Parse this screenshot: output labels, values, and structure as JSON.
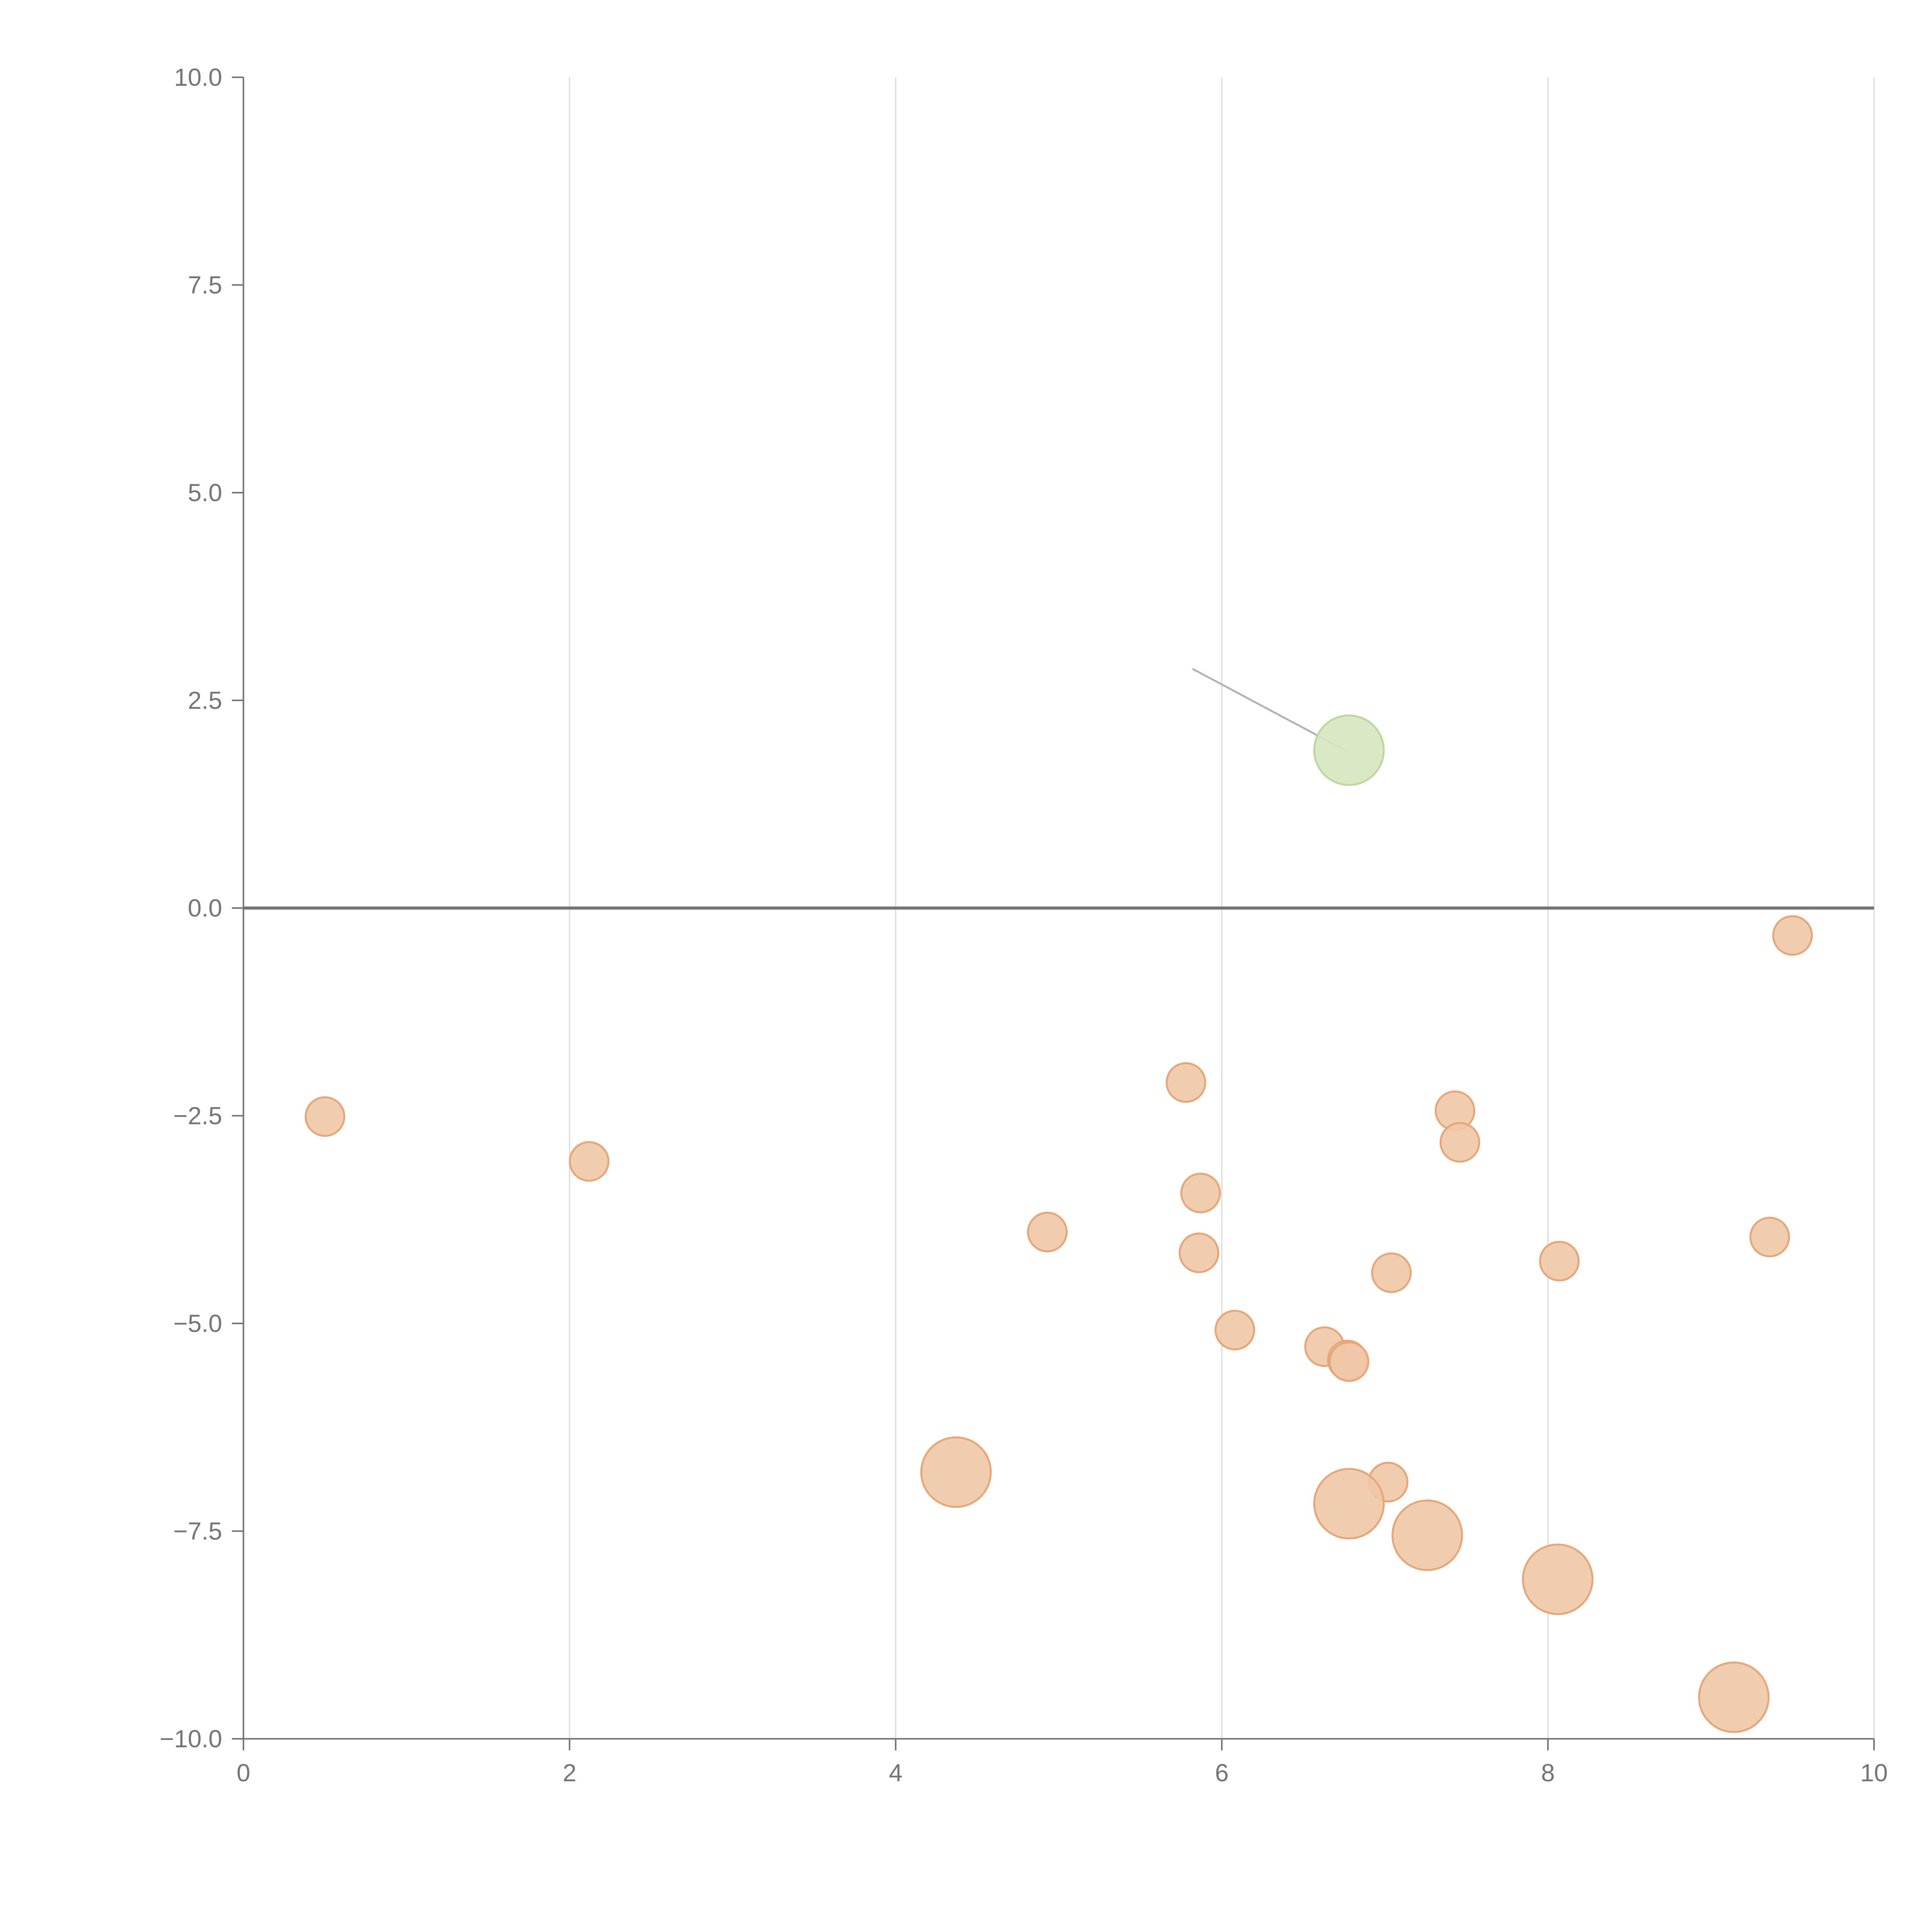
{
  "chart_data": {
    "type": "scatter",
    "title": "",
    "xlabel": "",
    "ylabel": "",
    "xlim": [
      0,
      10
    ],
    "ylim": [
      -10,
      10
    ],
    "x_ticks": [
      0,
      2,
      4,
      6,
      8,
      10
    ],
    "y_ticks": [
      -10,
      -7.5,
      -5,
      -2.5,
      0,
      2.5,
      5,
      7.5,
      10
    ],
    "x_tick_labels": [
      "0",
      "2",
      "4",
      "6",
      "8",
      "10"
    ],
    "y_tick_labels": [
      "−10.0",
      "−7.5",
      "−5.0",
      "−2.5",
      "0.0",
      "2.5",
      "5.0",
      "7.5",
      "10.0"
    ],
    "grid": {
      "vertical": true,
      "horizontal": false
    },
    "zero_line": true,
    "colors": {
      "negative_fill": "#f0c8a6",
      "negative_stroke": "#e6a678",
      "positive_fill": "#d6e5bf",
      "positive_stroke": "#bcd89e",
      "highlight_fill": "#e8a874"
    },
    "series": [
      {
        "points": [
          {
            "x": 6.78,
            "y": 1.9,
            "size": 3,
            "group": "positive",
            "leader": {
              "x": 5.82,
              "y": 2.88
            }
          },
          {
            "x": 9.5,
            "y": -0.33,
            "size": 1,
            "group": "negative"
          },
          {
            "x": 0.5,
            "y": -2.51,
            "size": 1,
            "group": "negative"
          },
          {
            "x": 2.12,
            "y": -3.05,
            "size": 1,
            "group": "negative"
          },
          {
            "x": 5.78,
            "y": -2.1,
            "size": 1,
            "group": "negative"
          },
          {
            "x": 7.43,
            "y": -2.44,
            "size": 1,
            "group": "negative"
          },
          {
            "x": 7.46,
            "y": -2.82,
            "size": 1,
            "group": "negative"
          },
          {
            "x": 5.87,
            "y": -3.43,
            "size": 1,
            "group": "negative"
          },
          {
            "x": 4.93,
            "y": -3.9,
            "size": 1,
            "group": "negative"
          },
          {
            "x": 5.86,
            "y": -4.15,
            "size": 1,
            "group": "negative"
          },
          {
            "x": 7.04,
            "y": -4.39,
            "size": 1,
            "group": "negative"
          },
          {
            "x": 8.07,
            "y": -4.25,
            "size": 1,
            "group": "negative"
          },
          {
            "x": 9.36,
            "y": -3.96,
            "size": 1,
            "group": "negative"
          },
          {
            "x": 6.08,
            "y": -5.08,
            "size": 1,
            "group": "negative"
          },
          {
            "x": 6.63,
            "y": -5.28,
            "size": 1,
            "group": "negative"
          },
          {
            "x": 6.77,
            "y": -5.44,
            "size": 1,
            "group": "negative"
          },
          {
            "x": 6.78,
            "y": -5.46,
            "size": 1,
            "group": "negative"
          },
          {
            "x": 4.37,
            "y": -6.79,
            "size": 3,
            "group": "negative"
          },
          {
            "x": 7.02,
            "y": -6.91,
            "size": 1,
            "group": "negative"
          },
          {
            "x": 6.78,
            "y": -7.17,
            "size": 3,
            "group": "negative"
          },
          {
            "x": 7.26,
            "y": -7.55,
            "size": 3,
            "group": "negative"
          },
          {
            "x": 8.06,
            "y": -8.08,
            "size": 3,
            "group": "negative"
          },
          {
            "x": 9.14,
            "y": -9.5,
            "size": 3,
            "group": "negative"
          }
        ]
      }
    ]
  }
}
